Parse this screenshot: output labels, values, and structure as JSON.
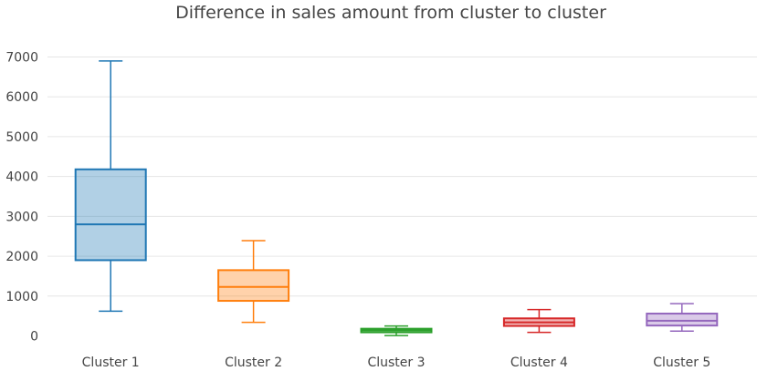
{
  "chart_data": {
    "type": "box",
    "title": "Difference in sales amount from cluster to cluster",
    "xlabel": "",
    "ylabel": "",
    "ylim": [
      0,
      7000
    ],
    "yticks": [
      0,
      1000,
      2000,
      3000,
      4000,
      5000,
      6000,
      7000
    ],
    "grid": true,
    "legend": "none",
    "categories": [
      "Cluster 1",
      "Cluster 2",
      "Cluster 3",
      "Cluster 4",
      "Cluster 5"
    ],
    "series": [
      {
        "category": "Cluster 1",
        "min": 620,
        "q1": 1900,
        "median": 2800,
        "q3": 4180,
        "max": 6900,
        "color": "#1f77b4"
      },
      {
        "category": "Cluster 2",
        "min": 340,
        "q1": 880,
        "median": 1230,
        "q3": 1650,
        "max": 2390,
        "color": "#ff7f0e"
      },
      {
        "category": "Cluster 3",
        "min": 10,
        "q1": 90,
        "median": 140,
        "q3": 180,
        "max": 250,
        "color": "#2ca02c"
      },
      {
        "category": "Cluster 4",
        "min": 90,
        "q1": 250,
        "median": 340,
        "q3": 440,
        "max": 660,
        "color": "#d62728"
      },
      {
        "category": "Cluster 5",
        "min": 120,
        "q1": 260,
        "median": 380,
        "q3": 560,
        "max": 810,
        "color": "#9467bd"
      }
    ]
  }
}
